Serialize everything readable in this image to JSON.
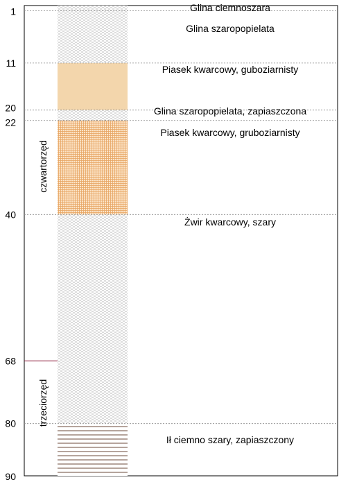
{
  "depth_ticks": [
    "1",
    "11",
    "20",
    "22",
    "40",
    "68",
    "80",
    "90"
  ],
  "eras": [
    {
      "id": "quaternary",
      "label": "czwartorzęd"
    },
    {
      "id": "tertiary",
      "label": "trzeciorzęd"
    }
  ],
  "chart_data": {
    "type": "table",
    "depth_range": [
      0,
      90
    ],
    "boundary_depths": [
      1,
      11,
      20,
      22,
      40,
      80
    ],
    "era_boundary_depth": 68,
    "layers": [
      {
        "top": 0,
        "bottom": 1,
        "name": "Glina ciemnoszara",
        "fill": "gray-dash",
        "color": "#c8c8c8"
      },
      {
        "top": 1,
        "bottom": 11,
        "name": "Glina szaropopielata",
        "fill": "gray-dash",
        "color": "#c8c8c8"
      },
      {
        "top": 11,
        "bottom": 20,
        "name": "Piasek kwarcowy, guboziarnisty",
        "fill": "solid",
        "color": "#f3d6ac"
      },
      {
        "top": 20,
        "bottom": 22,
        "name": "Glina szaropopielata, zapiaszczona",
        "fill": "gray-dash",
        "color": "#c8c8c8"
      },
      {
        "top": 22,
        "bottom": 40,
        "name": "Piasek kwarcowy, gruboziarnisty",
        "fill": "orange-grid",
        "color": "#e6a766"
      },
      {
        "top": 40,
        "bottom": 80,
        "name": "Żwir kwarcowy, szary",
        "fill": "gray-dash",
        "color": "#c8c8c8"
      },
      {
        "top": 80,
        "bottom": 90,
        "name": "Ił ciemno szary, zapiaszczony",
        "fill": "stripes",
        "color": "#6b4a3a"
      }
    ]
  }
}
